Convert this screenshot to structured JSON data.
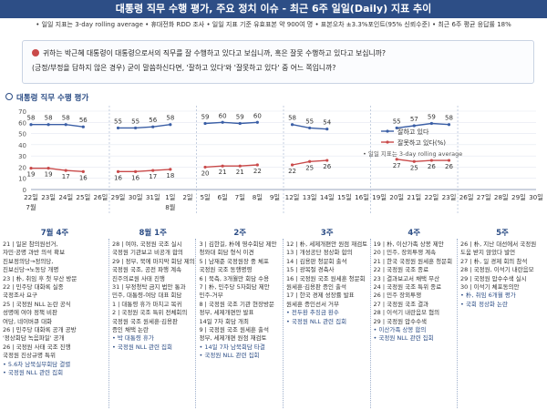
{
  "header": {
    "title": "대통령 직무 수행 평가, 주요 정치 이슈 - 최근 6주 일일(Daily) 지표 추이",
    "note": "• 일일 지표는 3-day rolling average  • 휴대전화 RDD 조사  • 일일 지표 기준 유효표본 약 900여 명  • 표본오차 ±3.3%포인트(95% 신뢰수준)  • 최근 6주 평균 응답률 18%"
  },
  "question": {
    "line1": "귀하는 박근혜 대통령이 대통령으로서의 직무를 잘 수행하고 있다고 보십니까, 혹은 잘못 수행하고 있다고 보십니까?",
    "line2": "(긍정/부정을 답하지 않은 경우) 굳이 말씀하신다면, '잘하고 있다'와 '잘못하고 있다' 중 어느 쪽입니까?"
  },
  "section_title": "대통령 직무 수행 평가",
  "chart_data": {
    "type": "line",
    "title": "대통령 직무 수행 평가",
    "ylim": [
      0,
      70
    ],
    "yticks": [
      "0",
      "10",
      "20",
      "30",
      "40",
      "50",
      "60",
      "70"
    ],
    "x_labels": [
      "22일",
      "23일",
      "24일",
      "25일",
      "26일",
      "29일",
      "30일",
      "31일",
      "1일",
      "2일",
      "5일",
      "6일",
      "7일",
      "8일",
      "9일",
      "12일",
      "13일",
      "14일",
      "15일",
      "16일",
      "19일",
      "20일",
      "21일",
      "22일",
      "23일",
      "26일",
      "27일",
      "28일",
      "29일",
      "30일"
    ],
    "month_labels": [
      {
        "text": "7월",
        "index": 0
      },
      {
        "text": "8월",
        "index": 8
      }
    ],
    "legend_note": "• 일일 지표는 3-day rolling average",
    "series": [
      {
        "name": "잘하고 있다",
        "color": "#3b5fa6",
        "values": [
          58,
          58,
          58,
          56,
          null,
          55,
          55,
          56,
          58,
          null,
          59,
          60,
          59,
          60,
          null,
          58,
          55,
          54,
          null,
          null,
          null,
          55,
          57,
          59,
          58,
          null,
          null,
          null,
          null,
          null
        ],
        "data_labels": [
          "58",
          "58",
          "58",
          "56",
          null,
          "55",
          "55",
          "56",
          "58",
          null,
          "59",
          "60",
          "59",
          "60",
          null,
          "58",
          "55",
          "54",
          null,
          null,
          null,
          "55",
          "57",
          "59",
          "58",
          null,
          null,
          null,
          null,
          null
        ]
      },
      {
        "name": "잘못하고 있다(%)",
        "color": "#c94a4a",
        "values": [
          19,
          19,
          17,
          16,
          null,
          16,
          16,
          17,
          18,
          null,
          20,
          21,
          21,
          22,
          null,
          22,
          25,
          26,
          null,
          null,
          null,
          27,
          25,
          26,
          26,
          null,
          null,
          null,
          null,
          null
        ],
        "data_labels": [
          "19",
          "19",
          "17",
          "16",
          null,
          "16",
          "16",
          "17",
          "18",
          null,
          "20",
          "21",
          "21",
          "22",
          null,
          "22",
          "25",
          "26",
          null,
          null,
          null,
          "27",
          "25",
          "26",
          "26",
          null,
          null,
          null,
          null,
          null
        ]
      }
    ],
    "weeks": [
      "7월 4주",
      "8월 1주",
      "2주",
      "3주",
      "4주",
      "5주"
    ]
  },
  "week_notes": [
    [
      "21 | 일본 참의원선거,",
      "자민·공명 과반 의석 확보",
      "진보정의당→정의당,",
      "진보신당→노동당 개명",
      "23 | 朴, 취임 후 첫 부산 방문",
      "22 | 민주당 대화록 실종",
      "국정조사 요구",
      "25 | 국정원 NLL 논란 공식",
      "성명에 여야 정책 비판",
      "여당, 네이버큐 대화",
      "26 | 민주당 대화록 공개 공방",
      "'정상회담 녹음파일' 공개",
      "26 | 국정원 사태 국조 진행",
      "국정원 진상규명 특위",
      "• 5.6차 남북실무회담 결렬",
      "• 국정원 NLL 관련 집회"
    ],
    [
      "28 | 여야, 국정원 국조 실시",
      "국정원 기관보고 비공개 합의",
      "29 | 정부, 북에 마지막 회담 제의",
      "국정원 국조, 공전 파행 계속",
      "진주의료원 사태 진행",
      "31 | 부정청탁 금지 법안 통과",
      "민주, 대통령-여당 대표 회담",
      "1 | 대통령 휴가 마치고 복귀",
      "2 | 국정원 국조 특위 전체회의",
      "국정원 국조 원세훈·김용판",
      "증인 채택 논란",
      "• 박 대통령 휴가",
      "• 국정원 NLL 관련 집회"
    ],
    [
      "3 | 김한길, 朴에 영수회담 제안",
      "청와대 회담 형식 이견",
      "5 | 남재준 국정원장 중 체포",
      "국정원 국조 동행명령",
      "6 | 북측, 3개월만 회담 수용",
      "7 | 朴, 민주당 5자회담 제안",
      "민주-거부",
      "8 | 국정원 국조 기관 현장방문",
      "정부, 세제개편안 발표",
      "14일 7차 회담 개최",
      "9 | 국정원 국조 원세훈 출석",
      "정부, 세제개편 원점 재검토",
      "• 14일 7차 남북회담 타결",
      "• 국정원 NLL 관련 집회"
    ],
    [
      "12 | 朴, 세제개편안 원점 재검토",
      "13 | 개성공단 정상화 합의",
      "14 | 김용판 청문회 출석",
      "15 | 광복절 경축사",
      "16 | 국정원 국조 원세훈 청문회",
      "원세훈·김용판 증인 출석",
      "17 | 한국 경제 성장률 발표",
      "원세훈 증인선서 거부",
      "• 전두환 추징금 환수",
      "• 국정원 NLL 관련 집회"
    ],
    [
      "19 | 朴, 이산가족 상봉 제안",
      "20 | 민주, 장외투쟁 계속",
      "21 | 한국 국정원 원세훈 청문회",
      "22 | 국정원 국조 종료",
      "23 | 결과보고서 채택 무산",
      "24 | 국정원 국조 특위 종료",
      "26 | 민주 장외투쟁",
      "27 | 국정원 국조 결과",
      "28 | 이석기 내란음모 혐의",
      "29 | 국정원 압수수색",
      "• 이산가족 상봉 합의",
      "• 국정원 NLL 관련 집회"
    ],
    [
      "26 | 朴, 지난 대선에서 국정원",
      "도움 받지 않았다 발언",
      "27 | 朴, 일 경제 회의 참석",
      "28 | 국정원, 이석기 내란음모",
      "29 | 국정원 압수수색 실시",
      "30 | 이석기 체포동의안",
      "• 朴, 취임 6개월 평가",
      "• 국회 정상화 논란"
    ]
  ]
}
